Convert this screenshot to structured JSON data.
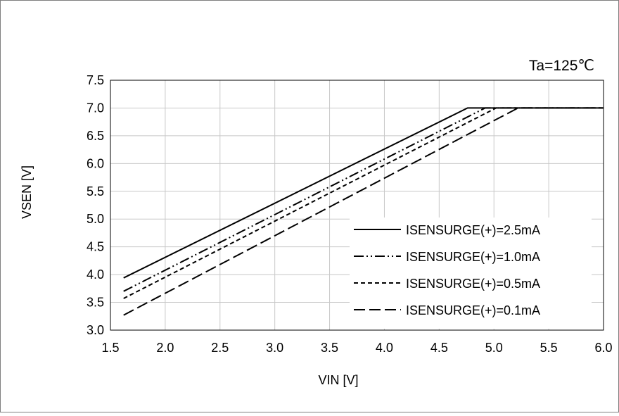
{
  "chart_data": {
    "type": "line",
    "title": "",
    "annotation": "Ta=125℃",
    "xlabel": "VIN [V]",
    "ylabel": "VSEN [V]",
    "xlim": [
      1.5,
      6.0
    ],
    "ylim": [
      3.0,
      7.5
    ],
    "x_ticks": [
      "1.5",
      "2.0",
      "2.5",
      "3.0",
      "3.5",
      "4.0",
      "4.5",
      "5.0",
      "5.5",
      "6.0"
    ],
    "y_ticks": [
      "3.0",
      "3.5",
      "4.0",
      "4.5",
      "5.0",
      "5.5",
      "6.0",
      "6.5",
      "7.0",
      "7.5"
    ],
    "grid": true,
    "legend_position": "lower-right",
    "series": [
      {
        "name": "ISENSURGE(+)=2.5mA",
        "style": "solid",
        "x": [
          1.62,
          4.76,
          6.0
        ],
        "y": [
          3.94,
          7.0,
          7.0
        ]
      },
      {
        "name": "ISENSURGE(+)=1.0mA",
        "style": "dash-dot-dot",
        "x": [
          1.62,
          4.92,
          6.0
        ],
        "y": [
          3.7,
          7.0,
          7.0
        ]
      },
      {
        "name": "ISENSURGE(+)=0.5mA",
        "style": "short-dash",
        "x": [
          1.62,
          5.02,
          6.0
        ],
        "y": [
          3.57,
          7.0,
          7.0
        ]
      },
      {
        "name": "ISENSURGE(+)=0.1mA",
        "style": "long-dash",
        "x": [
          1.62,
          5.22,
          6.0
        ],
        "y": [
          3.27,
          7.0,
          7.0
        ]
      }
    ]
  }
}
